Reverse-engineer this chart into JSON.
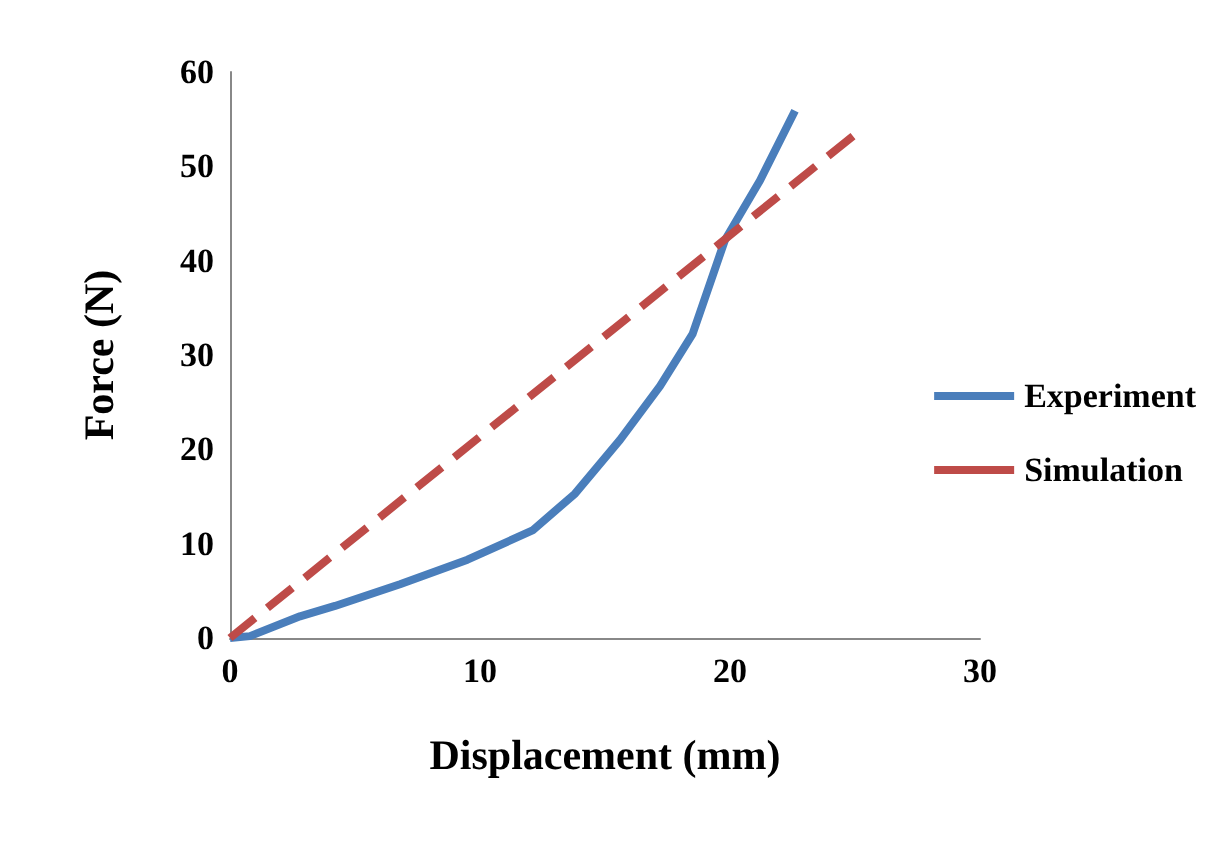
{
  "chart_data": {
    "type": "line",
    "xlabel": "Displacement (mm)",
    "ylabel": "Force (N)",
    "xlim": [
      0,
      30
    ],
    "xticks": [
      0,
      10,
      20,
      30
    ],
    "ylim": [
      0,
      60
    ],
    "yticks": [
      0,
      10,
      20,
      30,
      40,
      50,
      60
    ],
    "grid": false,
    "legend": "right",
    "marker": "none",
    "series": [
      {
        "name": "Experiment",
        "color": "#4a7ebb",
        "line_style": "solid",
        "x": [
          0,
          0.8,
          2.8,
          4.2,
          6.8,
          9.5,
          12.1,
          13.8,
          15.6,
          17.2,
          18.5,
          19.8,
          21.2,
          22.6
        ],
        "values": [
          0,
          0.2,
          2.3,
          3.4,
          5.7,
          8.3,
          11.4,
          15.3,
          21,
          26.7,
          32.2,
          42.2,
          48.5,
          55.9
        ]
      },
      {
        "name": "Simulation",
        "color": "#be4b48",
        "line_style": "dashed",
        "x": [
          0,
          25.2
        ],
        "values": [
          0,
          53.8
        ]
      }
    ]
  }
}
